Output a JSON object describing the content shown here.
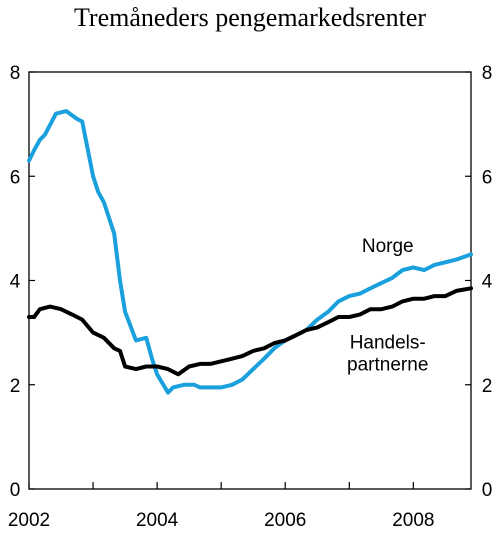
{
  "chart_data": {
    "type": "line",
    "title": "Tremåneders pengemarkedsrenter",
    "xlabel": "",
    "ylabel": "",
    "xlim": [
      2002,
      2008.9
    ],
    "ylim": [
      0,
      8
    ],
    "x_ticks": [
      2002,
      2004,
      2006,
      2008
    ],
    "x_tick_labels": [
      "2002",
      "2004",
      "2006",
      "2008"
    ],
    "y_ticks": [
      0,
      2,
      4,
      6,
      8
    ],
    "y_tick_labels": [
      "0",
      "2",
      "4",
      "6",
      "8"
    ],
    "grid": false,
    "dual_y_axis": true,
    "series": [
      {
        "name": "Norge",
        "color": "#1aa0dc",
        "points": [
          [
            2002.0,
            6.3
          ],
          [
            2002.08,
            6.5
          ],
          [
            2002.17,
            6.7
          ],
          [
            2002.25,
            6.8
          ],
          [
            2002.42,
            7.2
          ],
          [
            2002.58,
            7.25
          ],
          [
            2002.75,
            7.1
          ],
          [
            2002.83,
            7.05
          ],
          [
            2003.0,
            6.0
          ],
          [
            2003.08,
            5.7
          ],
          [
            2003.17,
            5.5
          ],
          [
            2003.33,
            4.9
          ],
          [
            2003.42,
            4.0
          ],
          [
            2003.5,
            3.4
          ],
          [
            2003.67,
            2.85
          ],
          [
            2003.83,
            2.9
          ],
          [
            2003.92,
            2.5
          ],
          [
            2004.0,
            2.2
          ],
          [
            2004.17,
            1.85
          ],
          [
            2004.25,
            1.95
          ],
          [
            2004.42,
            2.0
          ],
          [
            2004.58,
            2.0
          ],
          [
            2004.67,
            1.95
          ],
          [
            2004.83,
            1.95
          ],
          [
            2005.0,
            1.95
          ],
          [
            2005.17,
            2.0
          ],
          [
            2005.33,
            2.1
          ],
          [
            2005.5,
            2.3
          ],
          [
            2005.67,
            2.5
          ],
          [
            2005.83,
            2.7
          ],
          [
            2006.0,
            2.85
          ],
          [
            2006.17,
            2.95
          ],
          [
            2006.33,
            3.05
          ],
          [
            2006.5,
            3.25
          ],
          [
            2006.67,
            3.4
          ],
          [
            2006.83,
            3.6
          ],
          [
            2007.0,
            3.7
          ],
          [
            2007.17,
            3.75
          ],
          [
            2007.33,
            3.85
          ],
          [
            2007.5,
            3.95
          ],
          [
            2007.67,
            4.05
          ],
          [
            2007.83,
            4.2
          ],
          [
            2008.0,
            4.25
          ],
          [
            2008.17,
            4.2
          ],
          [
            2008.33,
            4.3
          ],
          [
            2008.5,
            4.35
          ],
          [
            2008.67,
            4.4
          ],
          [
            2008.9,
            4.5
          ]
        ]
      },
      {
        "name": "Handelspartnerne",
        "color": "#000000",
        "points": [
          [
            2002.0,
            3.3
          ],
          [
            2002.08,
            3.3
          ],
          [
            2002.17,
            3.45
          ],
          [
            2002.33,
            3.5
          ],
          [
            2002.5,
            3.45
          ],
          [
            2002.67,
            3.35
          ],
          [
            2002.83,
            3.25
          ],
          [
            2003.0,
            3.0
          ],
          [
            2003.17,
            2.9
          ],
          [
            2003.33,
            2.7
          ],
          [
            2003.42,
            2.65
          ],
          [
            2003.5,
            2.35
          ],
          [
            2003.67,
            2.3
          ],
          [
            2003.83,
            2.35
          ],
          [
            2004.0,
            2.35
          ],
          [
            2004.17,
            2.3
          ],
          [
            2004.33,
            2.2
          ],
          [
            2004.5,
            2.35
          ],
          [
            2004.67,
            2.4
          ],
          [
            2004.83,
            2.4
          ],
          [
            2005.0,
            2.45
          ],
          [
            2005.17,
            2.5
          ],
          [
            2005.33,
            2.55
          ],
          [
            2005.5,
            2.65
          ],
          [
            2005.67,
            2.7
          ],
          [
            2005.83,
            2.8
          ],
          [
            2006.0,
            2.85
          ],
          [
            2006.17,
            2.95
          ],
          [
            2006.33,
            3.05
          ],
          [
            2006.5,
            3.1
          ],
          [
            2006.67,
            3.2
          ],
          [
            2006.83,
            3.3
          ],
          [
            2007.0,
            3.3
          ],
          [
            2007.17,
            3.35
          ],
          [
            2007.33,
            3.45
          ],
          [
            2007.5,
            3.45
          ],
          [
            2007.67,
            3.5
          ],
          [
            2007.83,
            3.6
          ],
          [
            2008.0,
            3.65
          ],
          [
            2008.17,
            3.65
          ],
          [
            2008.33,
            3.7
          ],
          [
            2008.5,
            3.7
          ],
          [
            2008.67,
            3.8
          ],
          [
            2008.9,
            3.85
          ]
        ]
      }
    ],
    "annotations": [
      {
        "series": "Norge",
        "lines": [
          "Norge"
        ],
        "x": 2007.6,
        "y": 4.55
      },
      {
        "series": "Handelspartnerne",
        "lines": [
          "Handels-",
          "partnerne"
        ],
        "x": 2007.6,
        "y": 2.7
      }
    ]
  }
}
